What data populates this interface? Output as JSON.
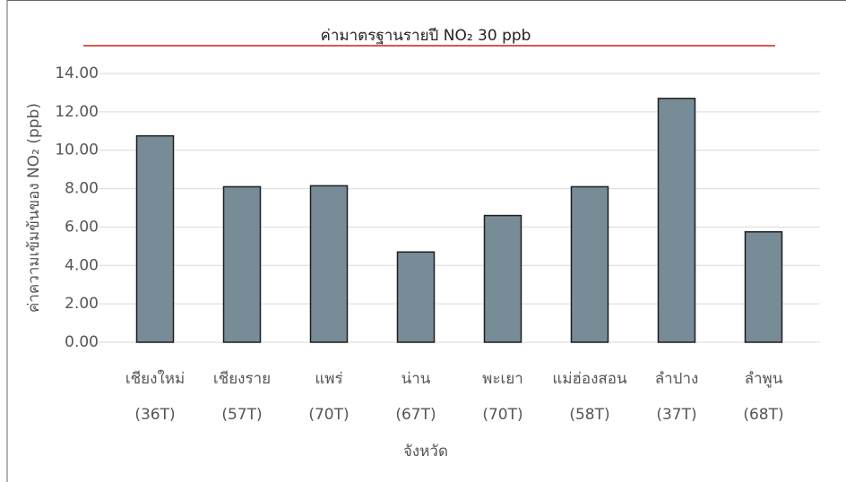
{
  "chart_data": {
    "type": "bar",
    "title": "ค่ามาตรฐานรายปี NO₂ 30 ppb",
    "y_label": "ค่าความเข้มข้นของ NO₂ (ppb)",
    "x_label": "จังหวัด",
    "categories": [
      "เชียงใหม่ (36T)",
      "เชียงราย (57T)",
      "แพร่ (70T)",
      "น่าน (67T)",
      "พะเยา (70T)",
      "แม่ฮ่องสอน (58T)",
      "ลำปาง (37T)",
      "ลำพูน (68T)"
    ],
    "values": [
      10.75,
      8.1,
      8.15,
      4.7,
      6.6,
      8.1,
      12.7,
      5.75
    ],
    "color": "#778c96",
    "ylim": [
      0,
      14
    ],
    "yticks": [
      {
        "value": 0,
        "label": "0.00"
      },
      {
        "value": 2,
        "label": "2.00"
      },
      {
        "value": 4,
        "label": "4.00"
      },
      {
        "value": 6,
        "label": "6.00"
      },
      {
        "value": 8,
        "label": "8.00"
      },
      {
        "value": 10,
        "label": "10.00"
      },
      {
        "value": 12,
        "label": "12.00"
      },
      {
        "value": 14,
        "label": "14.00"
      }
    ],
    "grid": true
  }
}
